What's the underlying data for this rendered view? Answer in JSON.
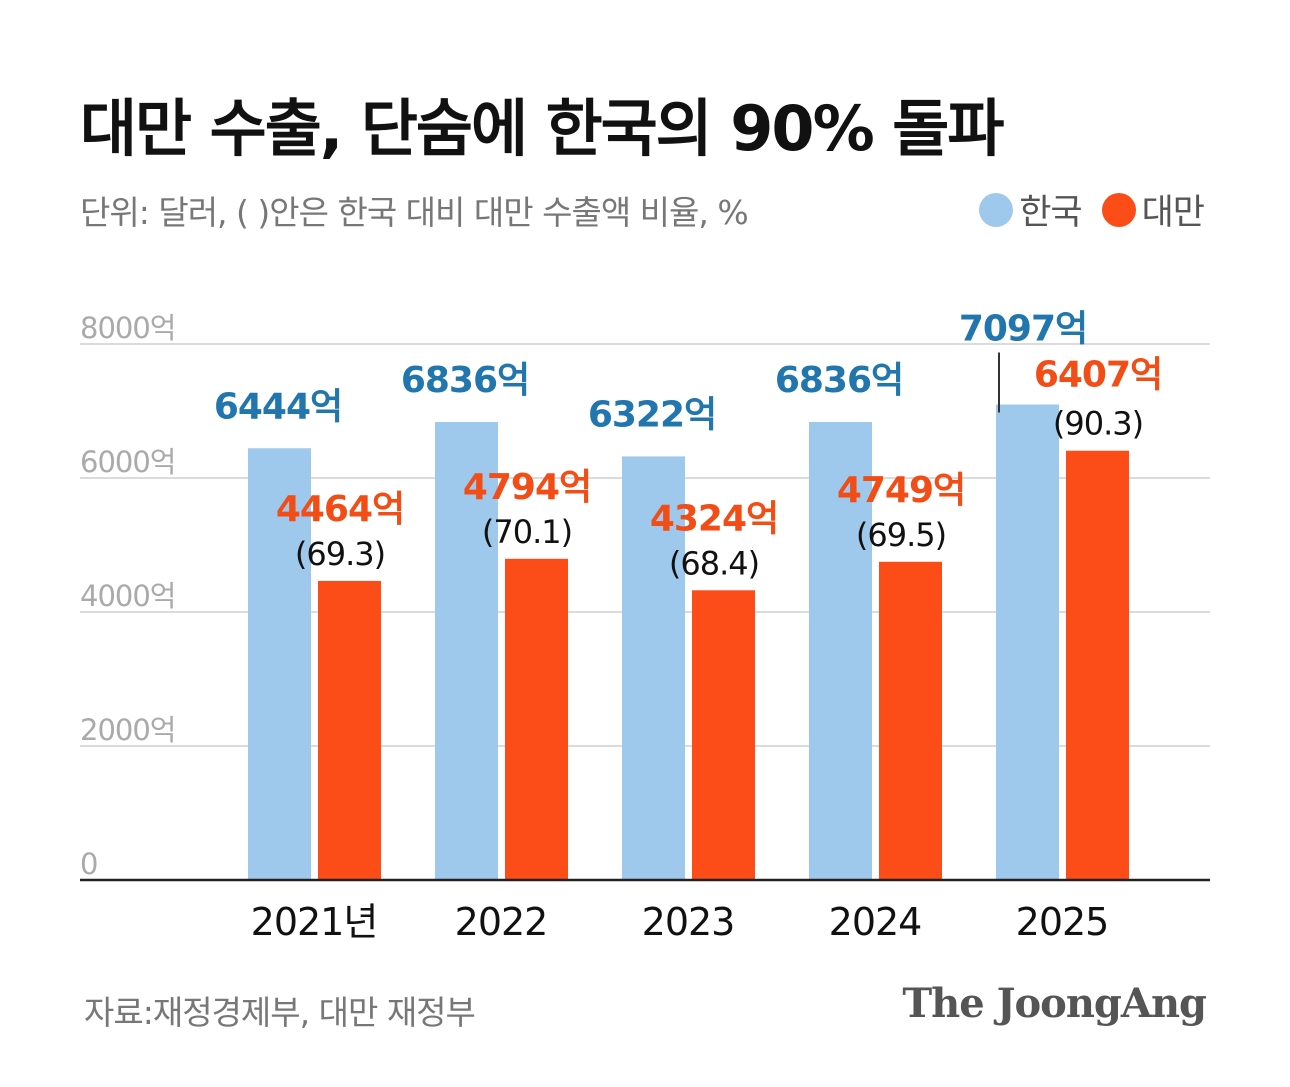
{
  "title": "대만 수출, 단숨에 한국의 90% 돌파",
  "subtitle": "단위: 달러, ( )안은 한국 대비 대만 수출액 비율, %",
  "legend": {
    "korea": "한국",
    "taiwan": "대만"
  },
  "colors": {
    "korea_bar": "#9fc9ec",
    "taiwan_bar": "#fc4c18",
    "korea_label": "#2176ae",
    "taiwan_label": "#f24d16",
    "ratio_label": "#111111"
  },
  "chart_data": {
    "type": "bar",
    "categories": [
      "2021년",
      "2022",
      "2023",
      "2024",
      "2025"
    ],
    "series": [
      {
        "name": "한국",
        "values": [
          6444,
          6836,
          6322,
          6836,
          7097
        ],
        "labels": [
          "6444억",
          "6836억",
          "6322억",
          "6836억",
          "7097억"
        ]
      },
      {
        "name": "대만",
        "values": [
          4464,
          4794,
          4324,
          4749,
          6407
        ],
        "labels": [
          "4464억",
          "4794억",
          "4324억",
          "4749억",
          "6407억"
        ],
        "ratios": [
          "(69.3)",
          "(70.1)",
          "(68.4)",
          "(69.5)",
          "(90.3)"
        ]
      }
    ],
    "ylim": [
      0,
      8000
    ],
    "yticks": [
      0,
      2000,
      4000,
      6000,
      8000
    ],
    "ytick_labels": [
      "0",
      "2000억",
      "4000억",
      "6000억",
      "8000억"
    ],
    "unit": "억 달러",
    "gridlines": true
  },
  "footer": {
    "source": "자료:재정경제부, 대만 재정부",
    "brand": "The JoongAng"
  }
}
